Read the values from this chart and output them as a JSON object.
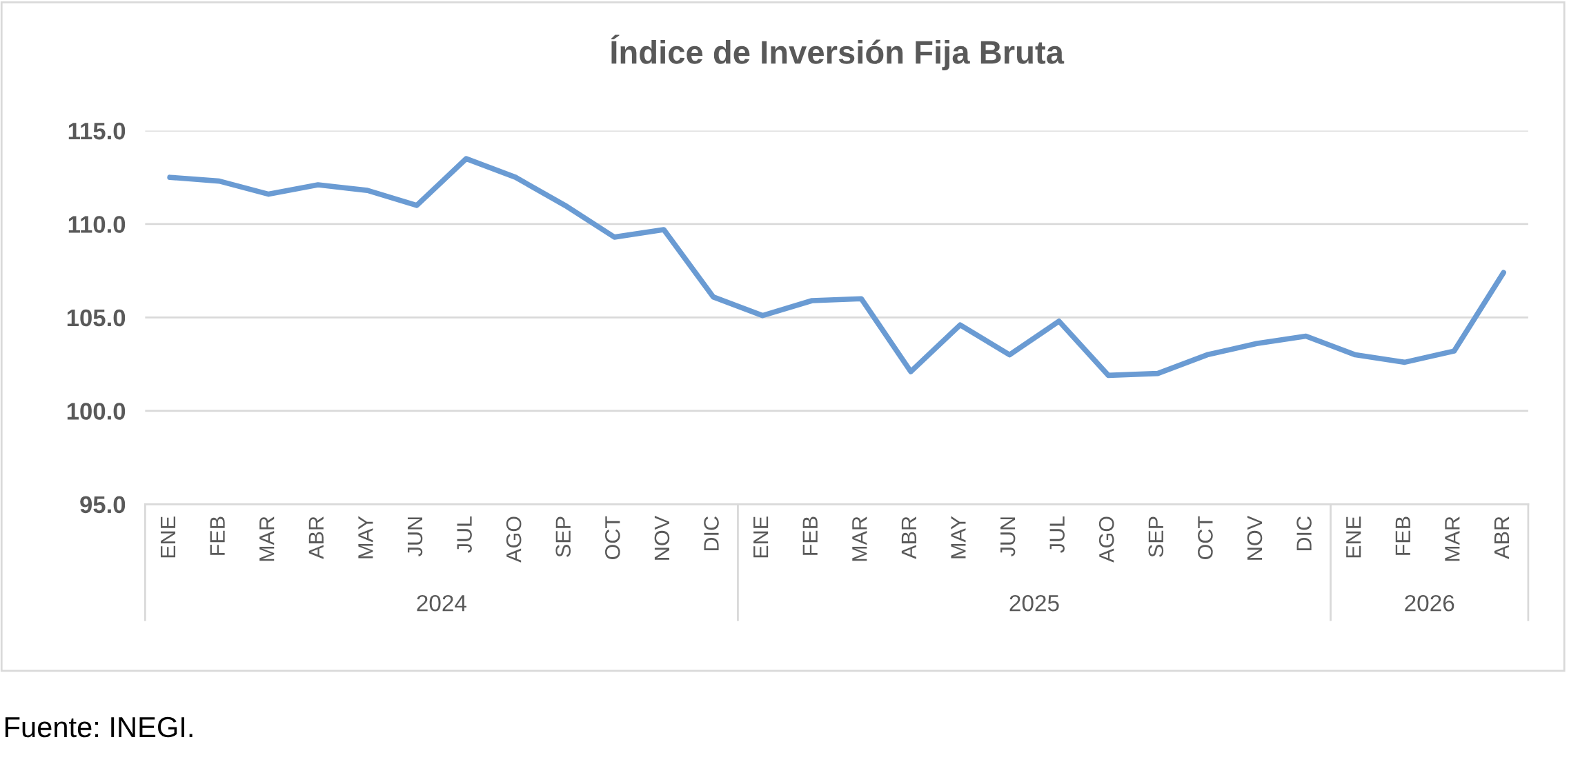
{
  "chart_data": {
    "type": "line",
    "title": "Índice de Inversión Fija Bruta",
    "categories": [
      "ENE",
      "FEB",
      "MAR",
      "ABR",
      "MAY",
      "JUN",
      "JUL",
      "AGO",
      "SEP",
      "OCT",
      "NOV",
      "DIC",
      "ENE",
      "FEB",
      "MAR",
      "ABR",
      "MAY",
      "JUN",
      "JUL",
      "AGO",
      "SEP",
      "OCT",
      "NOV",
      "DIC",
      "ENE",
      "FEB",
      "MAR",
      "ABR"
    ],
    "series": [
      {
        "color": "#6a9bd3",
        "values": [
          112.5,
          112.3,
          111.6,
          112.1,
          111.8,
          111.0,
          113.5,
          112.5,
          111.0,
          109.3,
          109.7,
          106.1,
          105.1,
          105.9,
          106.0,
          102.1,
          104.6,
          103.0,
          104.8,
          101.9,
          102.0,
          103.0,
          103.6,
          104.0,
          103.0,
          102.6,
          103.2,
          107.4
        ]
      }
    ],
    "ylim": [
      95,
      115
    ],
    "yticks": [
      {
        "value": 95,
        "label": "95.0"
      },
      {
        "value": 100,
        "label": "100.0"
      },
      {
        "value": 105,
        "label": "105.0"
      },
      {
        "value": 110,
        "label": "110.0"
      },
      {
        "value": 115,
        "label": "115.0"
      }
    ],
    "grid": "y",
    "legend": false,
    "marker": "none",
    "line_style": "solid",
    "annotations": [
      "2024",
      "2025",
      "2026",
      "Fuente: INEGI."
    ]
  }
}
